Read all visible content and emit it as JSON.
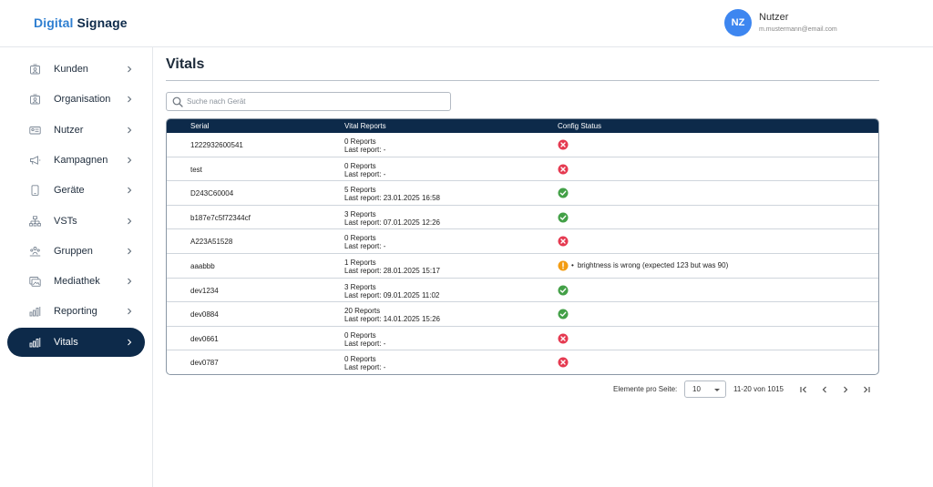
{
  "header": {
    "brand_part1": "Digital",
    "brand_part2": "Signage",
    "avatar_initials": "NZ",
    "user_name": "Nutzer",
    "user_email": "m.mustermann@email.com"
  },
  "sidebar": {
    "items": [
      {
        "label": "Kunden",
        "icon": "customers-icon"
      },
      {
        "label": "Organisation",
        "icon": "organisation-icon"
      },
      {
        "label": "Nutzer",
        "icon": "user-card-icon"
      },
      {
        "label": "Kampagnen",
        "icon": "megaphone-icon"
      },
      {
        "label": "Geräte",
        "icon": "device-icon"
      },
      {
        "label": "VSTs",
        "icon": "hierarchy-icon"
      },
      {
        "label": "Gruppen",
        "icon": "group-icon"
      },
      {
        "label": "Mediathek",
        "icon": "media-library-icon"
      },
      {
        "label": "Reporting",
        "icon": "bar-chart-icon"
      },
      {
        "label": "Vitals",
        "icon": "vitals-chart-icon"
      }
    ],
    "active_index": 9
  },
  "main": {
    "title": "Vitals",
    "search_placeholder": "Suche nach Gerät",
    "columns": [
      "Serial",
      "Vital Reports",
      "Config Status"
    ],
    "rows": [
      {
        "serial": "1222932600541",
        "reports": "0 Reports",
        "last": "Last report: -",
        "status": "error",
        "message": ""
      },
      {
        "serial": "test",
        "reports": "0 Reports",
        "last": "Last report: -",
        "status": "error",
        "message": ""
      },
      {
        "serial": "D243C60004",
        "reports": "5 Reports",
        "last": "Last report: 23.01.2025 16:58",
        "status": "ok",
        "message": ""
      },
      {
        "serial": "b187e7c5f72344cf",
        "reports": "3 Reports",
        "last": "Last report: 07.01.2025 12:26",
        "status": "ok",
        "message": ""
      },
      {
        "serial": "A223A51528",
        "reports": "0 Reports",
        "last": "Last report: -",
        "status": "error",
        "message": ""
      },
      {
        "serial": "aaabbb",
        "reports": "1 Reports",
        "last": "Last report: 28.01.2025 15:17",
        "status": "warning",
        "message": "brightness is wrong (expected 123 but was 90)"
      },
      {
        "serial": "dev1234",
        "reports": "3 Reports",
        "last": "Last report: 09.01.2025 11:02",
        "status": "ok",
        "message": ""
      },
      {
        "serial": "dev0884",
        "reports": "20 Reports",
        "last": "Last report: 14.01.2025 15:26",
        "status": "ok",
        "message": ""
      },
      {
        "serial": "dev0661",
        "reports": "0 Reports",
        "last": "Last report: -",
        "status": "error",
        "message": ""
      },
      {
        "serial": "dev0787",
        "reports": "0 Reports",
        "last": "Last report: -",
        "status": "error",
        "message": ""
      }
    ]
  },
  "pagination": {
    "per_page_label": "Elemente pro Seite:",
    "per_page_value": "10",
    "range": "11-20 von 1015"
  },
  "colors": {
    "navy": "#0d2a4a",
    "brand_blue": "#2f7fd1",
    "ok": "#43a047",
    "error": "#e53950",
    "warning": "#f39c12"
  }
}
